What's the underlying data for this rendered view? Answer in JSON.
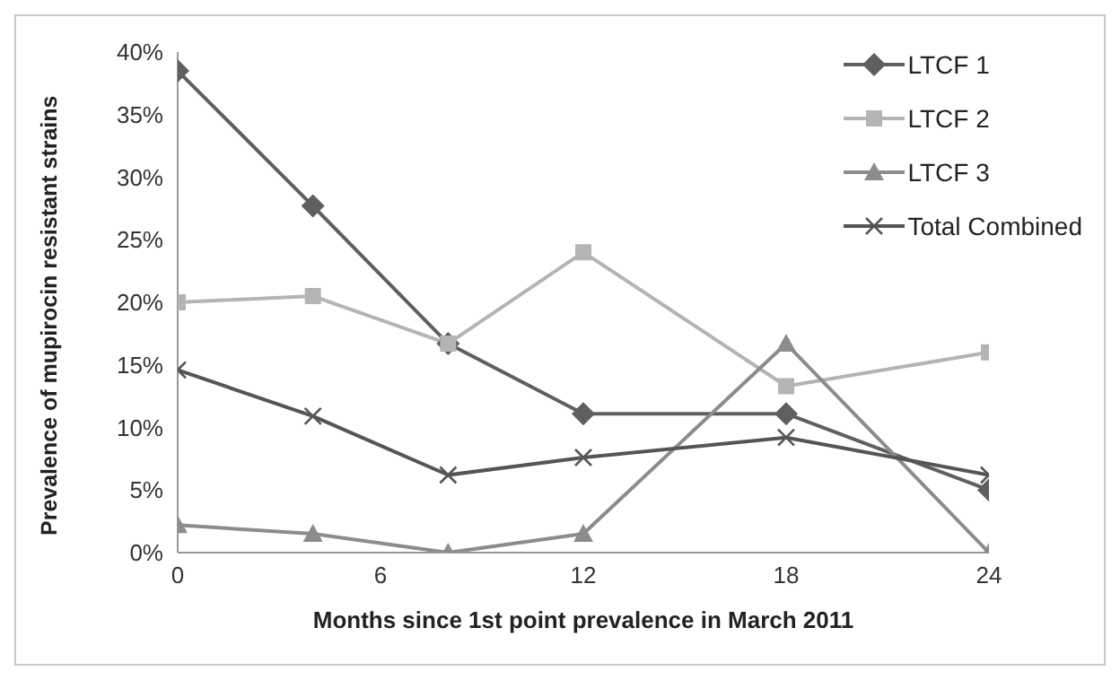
{
  "chart_data": {
    "type": "line",
    "xlabel": "Months since 1st point prevalence in March 2011",
    "ylabel": "Prevalence of mupirocin resistant strains",
    "x": [
      0,
      4,
      8,
      12,
      18,
      24
    ],
    "series": [
      {
        "name": "LTCF 1",
        "color": "#5f5f5f",
        "marker": "diamond",
        "values": [
          38.5,
          27.7,
          16.7,
          11.1,
          11.1,
          5.0
        ]
      },
      {
        "name": "LTCF 2",
        "color": "#b4b4b4",
        "marker": "square",
        "values": [
          20,
          20.5,
          16.7,
          24,
          13.3,
          16.0
        ]
      },
      {
        "name": "LTCF 3",
        "color": "#8c8c8c",
        "marker": "triangle",
        "values": [
          2.2,
          1.5,
          0,
          1.5,
          16.7,
          0
        ]
      },
      {
        "name": "Total Combined",
        "color": "#555555",
        "marker": "cross",
        "values": [
          14.6,
          10.9,
          6.2,
          7.6,
          9.2,
          6.2
        ]
      }
    ],
    "xlim": [
      0,
      24
    ],
    "xticks": [
      0,
      6,
      12,
      18,
      24
    ],
    "ylim": [
      0,
      40
    ],
    "yticks": [
      {
        "value": 0,
        "label": "0%"
      },
      {
        "value": 5,
        "label": "5%"
      },
      {
        "value": 10,
        "label": "10%"
      },
      {
        "value": 15,
        "label": "15%"
      },
      {
        "value": 20,
        "label": "20%"
      },
      {
        "value": 25,
        "label": "25%"
      },
      {
        "value": 30,
        "label": "30%"
      },
      {
        "value": 35,
        "label": "35%"
      },
      {
        "value": 40,
        "label": "40%"
      }
    ],
    "grid": false,
    "legend": "top right"
  }
}
